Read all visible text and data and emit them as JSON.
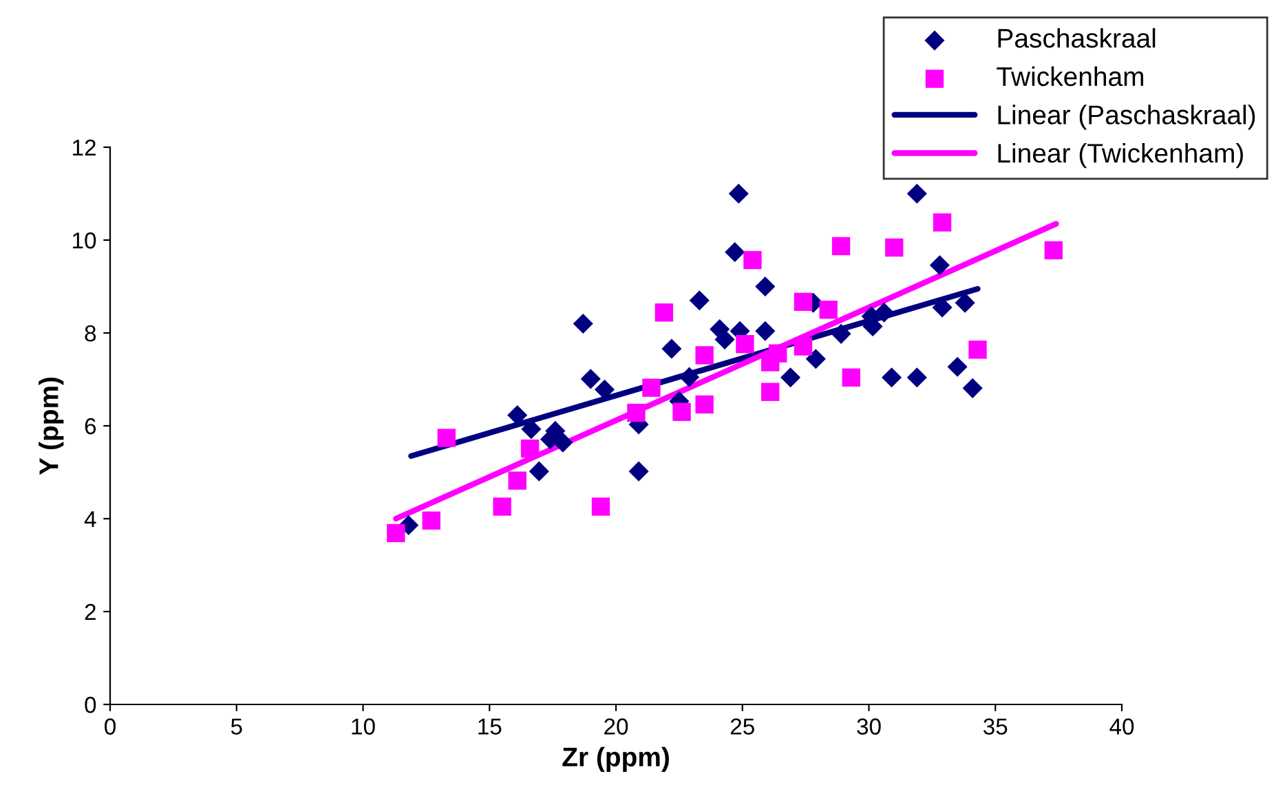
{
  "chart_data": {
    "type": "scatter",
    "xlabel": "Zr (ppm)",
    "ylabel": "Y (ppm)",
    "xlim": [
      0,
      40
    ],
    "ylim": [
      0,
      12
    ],
    "xticks": [
      0,
      5,
      10,
      15,
      20,
      25,
      30,
      35,
      40
    ],
    "yticks": [
      0,
      2,
      4,
      6,
      8,
      10,
      12
    ],
    "grid": false,
    "legend": "top right",
    "series": [
      {
        "name": "Paschaskraal",
        "color": "#000080",
        "marker": "diamond",
        "x": [
          11.8,
          16.1,
          16.65,
          16.96,
          17.4,
          17.6,
          17.9,
          18.7,
          19.0,
          19.55,
          20.9,
          20.9,
          22.2,
          22.5,
          22.9,
          23.3,
          24.1,
          24.3,
          24.7,
          24.85,
          24.9,
          25.9,
          25.9,
          26.9,
          27.8,
          27.9,
          28.9,
          30.1,
          30.15,
          30.6,
          30.9,
          31.9,
          31.9,
          32.8,
          32.9,
          33.5,
          33.8,
          34.1
        ],
        "values": [
          3.86,
          6.23,
          5.93,
          5.02,
          5.71,
          5.89,
          5.64,
          8.2,
          7.01,
          6.78,
          6.03,
          5.02,
          7.66,
          6.53,
          7.05,
          8.7,
          8.08,
          7.86,
          9.74,
          11.0,
          8.04,
          9.0,
          8.04,
          7.04,
          8.65,
          7.44,
          7.98,
          8.36,
          8.14,
          8.44,
          7.04,
          7.04,
          11.0,
          9.46,
          8.55,
          7.27,
          8.65,
          6.81
        ]
      },
      {
        "name": "Twickenham",
        "color": "#ff00ff",
        "marker": "square",
        "x": [
          11.3,
          12.7,
          13.3,
          15.5,
          16.1,
          16.6,
          19.4,
          20.8,
          21.4,
          21.9,
          22.6,
          23.5,
          23.5,
          25.1,
          25.4,
          26.1,
          26.1,
          26.4,
          27.4,
          27.4,
          28.4,
          28.9,
          29.3,
          31.0,
          32.9,
          34.3,
          37.3
        ],
        "values": [
          3.69,
          3.96,
          5.74,
          4.26,
          4.82,
          5.51,
          4.26,
          6.28,
          6.82,
          8.44,
          6.3,
          6.46,
          7.52,
          7.76,
          9.57,
          6.73,
          7.37,
          7.56,
          7.71,
          8.67,
          8.5,
          9.87,
          7.04,
          9.84,
          10.38,
          7.64,
          9.78
        ]
      },
      {
        "name": "Linear (Paschaskraal)",
        "type": "line",
        "color": "#000080",
        "x": [
          11.9,
          34.3
        ],
        "values": [
          5.35,
          8.95
        ]
      },
      {
        "name": "Linear (Twickenham)",
        "type": "line",
        "color": "#ff00ff",
        "x": [
          11.3,
          37.4
        ],
        "values": [
          4.0,
          10.35
        ]
      }
    ]
  }
}
